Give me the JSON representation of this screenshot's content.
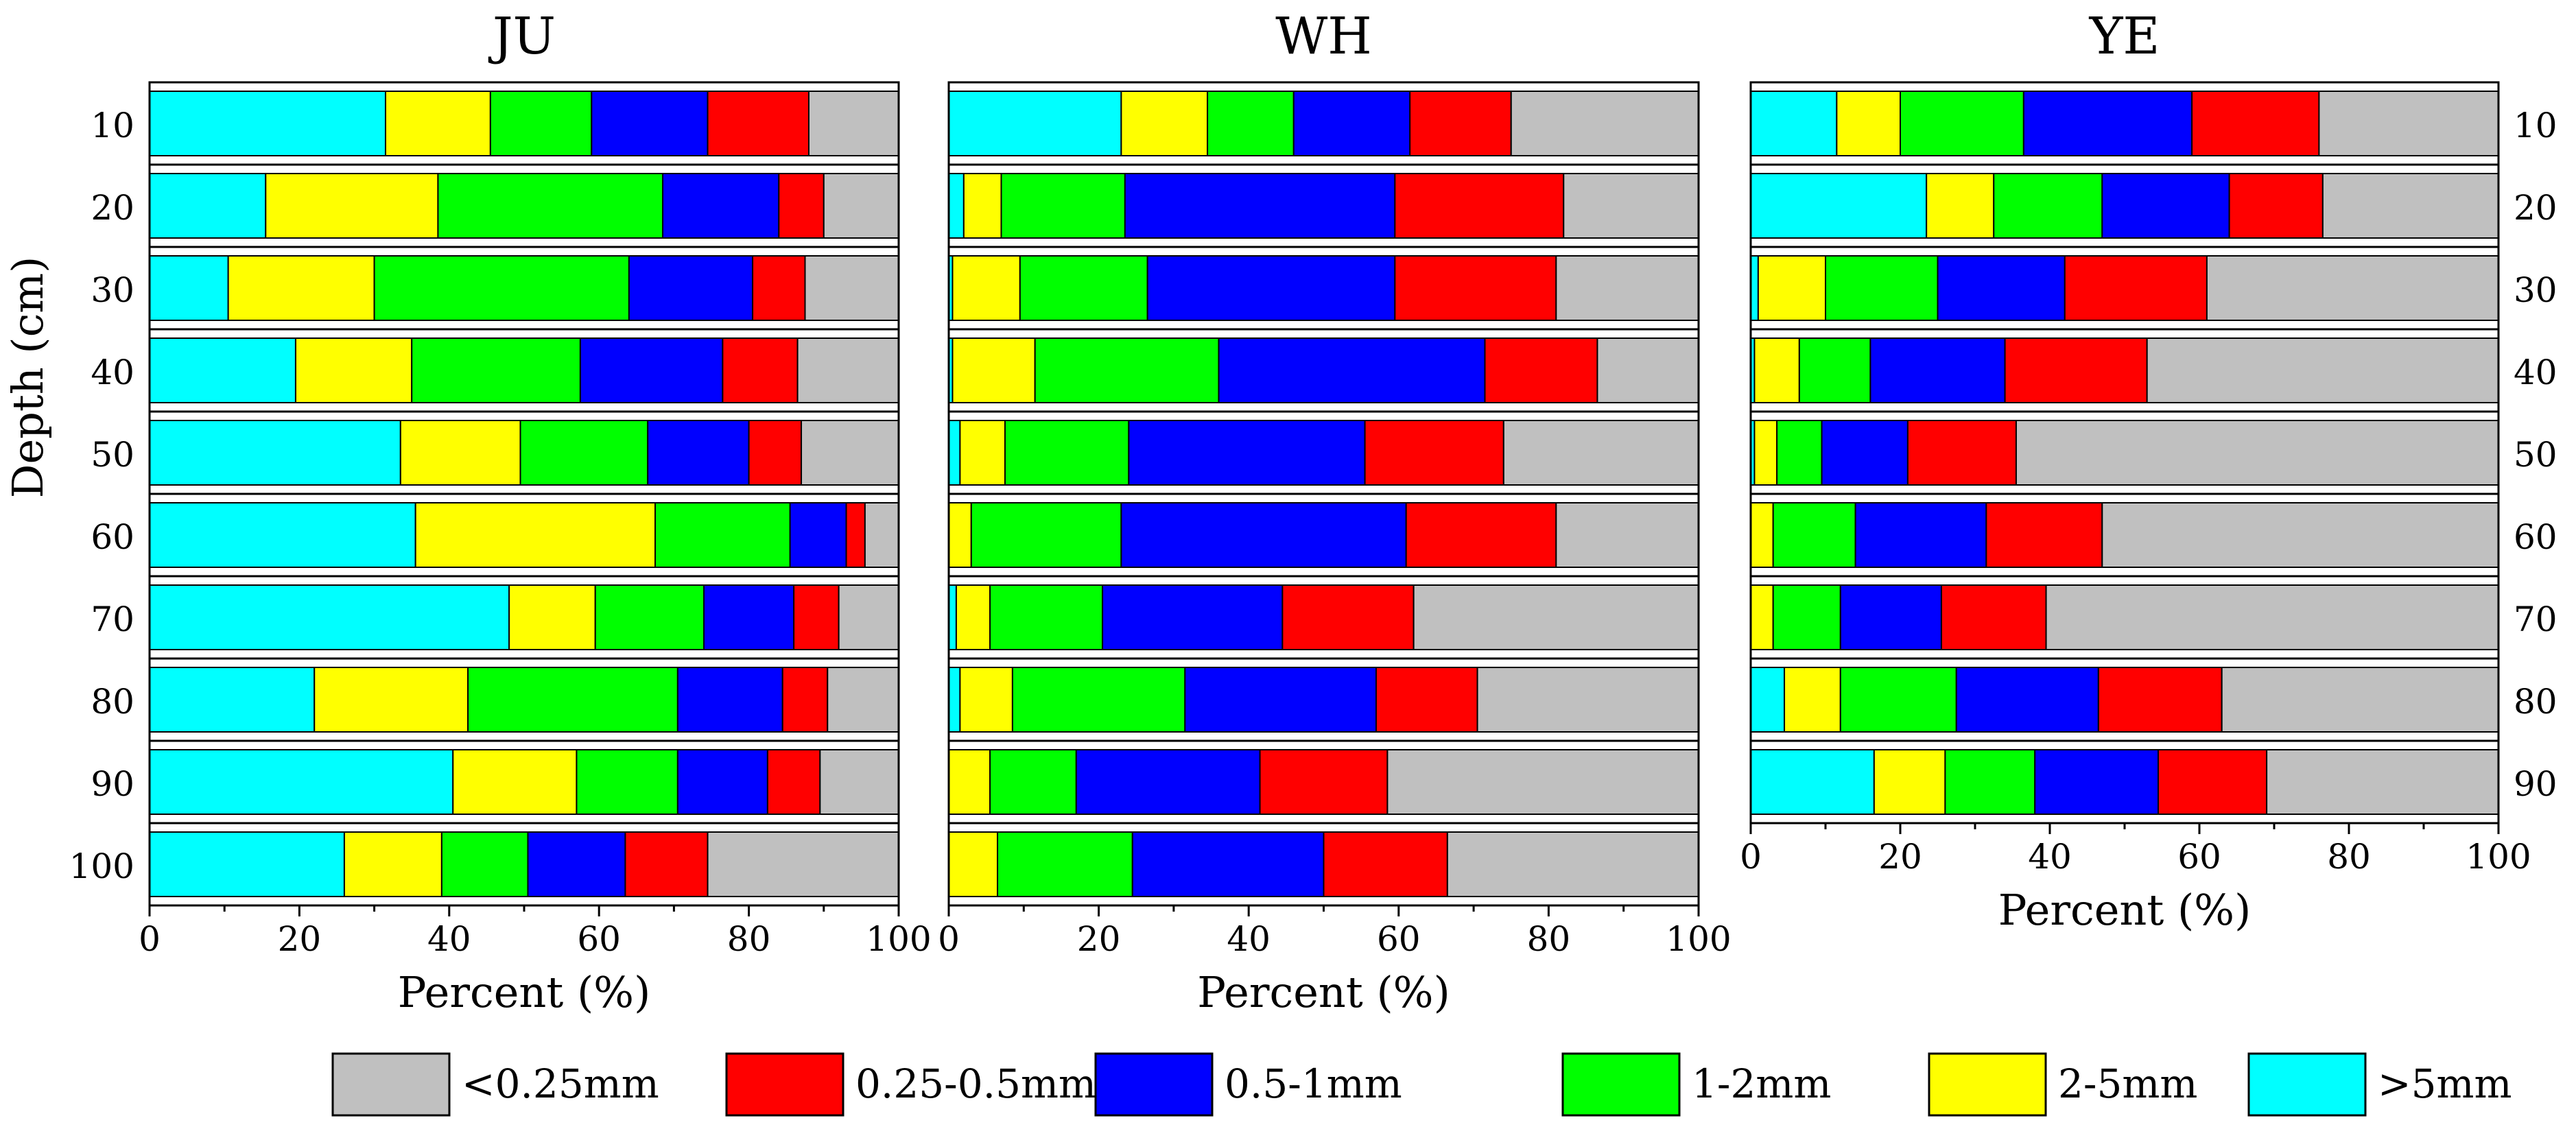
{
  "figure": {
    "ylabel": "Depth (cm)",
    "xlabel": "Percent (%)"
  },
  "legend": [
    {
      "label": "<0.25mm",
      "color": "#c0c0c0"
    },
    {
      "label": "0.25-0.5mm",
      "color": "#ff0000"
    },
    {
      "label": "0.5-1mm",
      "color": "#0000ff"
    },
    {
      "label": "1-2mm",
      "color": "#00ff00"
    },
    {
      "label": "2-5mm",
      "color": "#ffff00"
    },
    {
      "label": ">5mm",
      "color": "#00ffff"
    }
  ],
  "chart_data": [
    {
      "type": "bar",
      "orientation": "horizontal",
      "stacked": true,
      "title": "JU",
      "xlabel": "Percent (%)",
      "ylabel": "Depth (cm)",
      "xlim": [
        0,
        100
      ],
      "x_ticks": [
        "0",
        "20",
        "40",
        "60",
        "80",
        "100"
      ],
      "categories": [
        "10",
        "20",
        "30",
        "40",
        "50",
        "60",
        "70",
        "80",
        "90",
        "100"
      ],
      "series": [
        {
          "name": ">5mm",
          "color": "#00ffff",
          "values": [
            31.5,
            15.5,
            10.5,
            19.5,
            33.5,
            35.5,
            48,
            22,
            40.5,
            26
          ]
        },
        {
          "name": "2-5mm",
          "color": "#ffff00",
          "values": [
            14,
            23,
            19.5,
            15.5,
            16,
            32,
            11.5,
            20.5,
            16.5,
            13
          ]
        },
        {
          "name": "1-2mm",
          "color": "#00ff00",
          "values": [
            13.5,
            30,
            34,
            22.5,
            17,
            18,
            14.5,
            28,
            13.5,
            11.5
          ]
        },
        {
          "name": "0.5-1mm",
          "color": "#0000ff",
          "values": [
            15.5,
            15.5,
            16.5,
            19,
            13.5,
            7.5,
            12,
            14,
            12,
            13
          ]
        },
        {
          "name": "0.25-0.5mm",
          "color": "#ff0000",
          "values": [
            13.5,
            6,
            7,
            10,
            7,
            2.5,
            6,
            6,
            7,
            11
          ]
        },
        {
          "name": "<0.25mm",
          "color": "#c0c0c0",
          "values": [
            12,
            10,
            12.5,
            13.5,
            13,
            4.5,
            8,
            9.5,
            10.5,
            25.5
          ]
        }
      ]
    },
    {
      "type": "bar",
      "orientation": "horizontal",
      "stacked": true,
      "title": "WH",
      "xlabel": "Percent (%)",
      "ylabel": "Depth (cm)",
      "xlim": [
        0,
        100
      ],
      "x_ticks": [
        "0",
        "20",
        "40",
        "60",
        "80",
        "100"
      ],
      "categories": [
        "10",
        "20",
        "30",
        "40",
        "50",
        "60",
        "70",
        "80",
        "90",
        "100"
      ],
      "series": [
        {
          "name": ">5mm",
          "color": "#00ffff",
          "values": [
            23,
            2,
            0.5,
            0.5,
            1.5,
            0,
            1,
            1.5,
            0,
            0
          ]
        },
        {
          "name": "2-5mm",
          "color": "#ffff00",
          "values": [
            11.5,
            5,
            9,
            11,
            6,
            3,
            4.5,
            7,
            5.5,
            6.5
          ]
        },
        {
          "name": "1-2mm",
          "color": "#00ff00",
          "values": [
            11.5,
            16.5,
            17,
            24.5,
            16.5,
            20,
            15,
            23,
            11.5,
            18
          ]
        },
        {
          "name": "0.5-1mm",
          "color": "#0000ff",
          "values": [
            15.5,
            36,
            33,
            35.5,
            31.5,
            38,
            24,
            25.5,
            24.5,
            25.5
          ]
        },
        {
          "name": "0.25-0.5mm",
          "color": "#ff0000",
          "values": [
            13.5,
            22.5,
            21.5,
            15,
            18.5,
            20,
            17.5,
            13.5,
            17,
            16.5
          ]
        },
        {
          "name": "<0.25mm",
          "color": "#c0c0c0",
          "values": [
            25,
            18,
            19,
            13.5,
            26,
            19,
            38,
            29.5,
            41.5,
            33.5
          ]
        }
      ]
    },
    {
      "type": "bar",
      "orientation": "horizontal",
      "stacked": true,
      "title": "YE",
      "xlabel": "Percent (%)",
      "ylabel": "Depth (cm)",
      "xlim": [
        0,
        100
      ],
      "x_ticks": [
        "0",
        "20",
        "40",
        "60",
        "80",
        "100"
      ],
      "categories": [
        "10",
        "20",
        "30",
        "40",
        "50",
        "60",
        "70",
        "80",
        "90"
      ],
      "series": [
        {
          "name": ">5mm",
          "color": "#00ffff",
          "values": [
            11.5,
            23.5,
            1,
            0.5,
            0.5,
            0,
            0,
            4.5,
            16.5
          ]
        },
        {
          "name": "2-5mm",
          "color": "#ffff00",
          "values": [
            8.5,
            9,
            9,
            6,
            3,
            3,
            3,
            7.5,
            9.5
          ]
        },
        {
          "name": "1-2mm",
          "color": "#00ff00",
          "values": [
            16.5,
            14.5,
            15,
            9.5,
            6,
            11,
            9,
            15.5,
            12
          ]
        },
        {
          "name": "0.5-1mm",
          "color": "#0000ff",
          "values": [
            22.5,
            17,
            17,
            18,
            11.5,
            17.5,
            13.5,
            19,
            16.5
          ]
        },
        {
          "name": "0.25-0.5mm",
          "color": "#ff0000",
          "values": [
            17,
            12.5,
            19,
            19,
            14.5,
            15.5,
            14,
            16.5,
            14.5
          ]
        },
        {
          "name": "<0.25mm",
          "color": "#c0c0c0",
          "values": [
            24,
            23.5,
            39,
            47,
            64.5,
            53,
            60.5,
            37,
            31
          ]
        }
      ]
    }
  ]
}
